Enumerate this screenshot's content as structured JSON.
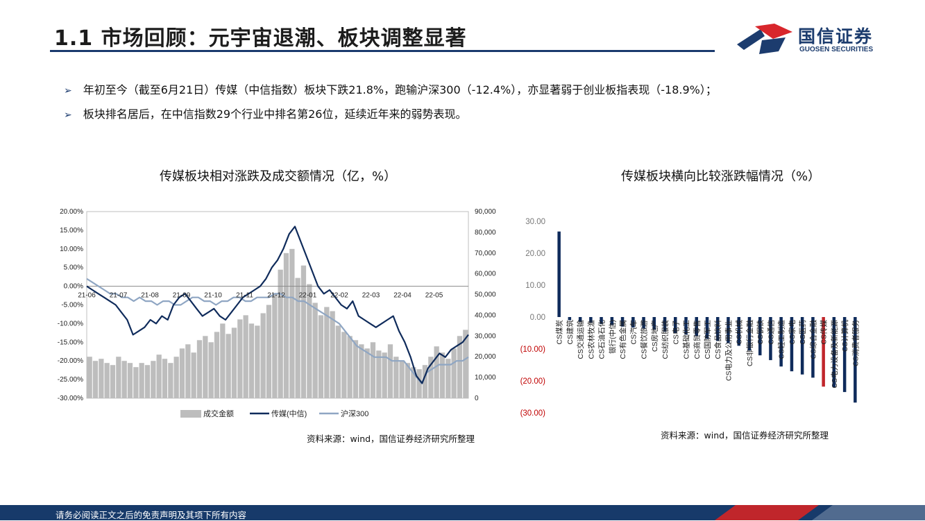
{
  "header": {
    "title": "1.1 市场回顾：元宇宙退潮、板块调整显著",
    "logo_cn": "国信证券",
    "logo_en": "GUOSEN SECURITIES"
  },
  "bullets": [
    "年初至今（截至6月21日）传媒（中信指数）板块下跌21.8%，跑输沪深300（-12.4%），亦显著弱于创业板指表现（-18.9%）；",
    "板块排名居后，在中信指数29个行业中排名第26位，延续近年来的弱势表现。"
  ],
  "left_chart": {
    "title": "传媒板块相对涨跌及成交额情况（亿，%）",
    "source": "资料来源：wind，国信证券经济研究所整理"
  },
  "right_chart": {
    "title": "传媒板块横向比较涨跌幅情况（%）",
    "source": "资料来源：wind，国信证券经济研究所整理"
  },
  "footer": {
    "text": "请务必阅读正文之后的免责声明及其项下所有内容"
  },
  "colors": {
    "navy": "#0f2b5b",
    "gray_line": "#8fa6c3",
    "bar_gray": "#bdbdbd",
    "highlight": "#c0262b",
    "negative_label": "#c00000"
  },
  "chart_data": [
    {
      "type": "line",
      "x_ticks": [
        "21-06",
        "21-07",
        "21-08",
        "21-09",
        "21-10",
        "21-11",
        "21-12",
        "22-01",
        "22-02",
        "22-03",
        "22-04",
        "22-05"
      ],
      "y_left_ticks": [
        "20.00%",
        "15.00%",
        "10.00%",
        "5.00%",
        "0.00%",
        "-5.00%",
        "-10.00%",
        "-15.00%",
        "-20.00%",
        "-25.00%",
        "-30.00%"
      ],
      "y_right_ticks": [
        "90,000",
        "80,000",
        "70,000",
        "60,000",
        "50,000",
        "40,000",
        "30,000",
        "20,000",
        "10,000",
        "0"
      ],
      "ylim_left": [
        -30,
        20
      ],
      "ylim_right": [
        0,
        90000
      ],
      "legend": [
        "成交金额",
        "传媒(中信)",
        "沪深300"
      ],
      "legend_position": "bottom",
      "series": [
        {
          "name": "成交金额",
          "kind": "bar",
          "axis": "right",
          "values": [
            20000,
            18000,
            19000,
            17000,
            16000,
            20000,
            18000,
            17000,
            15000,
            17000,
            16000,
            18000,
            21000,
            19000,
            17000,
            20000,
            24000,
            26000,
            22000,
            28000,
            30000,
            27000,
            32000,
            36000,
            31000,
            34000,
            38000,
            40000,
            36000,
            35000,
            41000,
            45000,
            50000,
            62000,
            70000,
            72000,
            58000,
            64000,
            55000,
            46000,
            40000,
            44000,
            42000,
            35000,
            32000,
            30000,
            28000,
            26000,
            24000,
            27000,
            23000,
            22000,
            26000,
            20000,
            18000,
            17000,
            15000,
            14000,
            16000,
            20000,
            25000,
            22000,
            19000,
            24000,
            30000,
            33000
          ]
        },
        {
          "name": "传媒(中信)",
          "kind": "line",
          "axis": "left",
          "values": [
            0,
            -1,
            -2,
            -3,
            -4,
            -5,
            -7,
            -9,
            -13,
            -12,
            -11,
            -9,
            -10,
            -8,
            -9,
            -5,
            -3,
            -2,
            -4,
            -6,
            -8,
            -7,
            -6,
            -8,
            -9,
            -7,
            -5,
            -3,
            -2,
            -1,
            0,
            2,
            5,
            7,
            10,
            14,
            16,
            12,
            8,
            4,
            0,
            -2,
            -1,
            -3,
            -5,
            -6,
            -4,
            -8,
            -9,
            -10,
            -11,
            -10,
            -9,
            -8,
            -12,
            -15,
            -19,
            -24,
            -26,
            -22,
            -20,
            -18,
            -19,
            -17,
            -16,
            -15,
            -13
          ]
        },
        {
          "name": "沪深300",
          "kind": "line",
          "axis": "left",
          "values": [
            2,
            1,
            0,
            -1,
            -2,
            -2,
            -3,
            -3,
            -4,
            -3,
            -4,
            -4,
            -5,
            -4,
            -4,
            -5,
            -5,
            -4,
            -3,
            -3,
            -4,
            -4,
            -5,
            -4,
            -4,
            -3,
            -3,
            -4,
            -4,
            -3,
            -3,
            -3,
            -2,
            -2,
            -3,
            -3,
            -4,
            -4,
            -5,
            -6,
            -7,
            -8,
            -9,
            -10,
            -12,
            -14,
            -16,
            -17,
            -18,
            -19,
            -19,
            -19,
            -20,
            -20,
            -20,
            -22,
            -24,
            -26,
            -23,
            -22,
            -21,
            -21,
            -21,
            -20,
            -20,
            -19
          ]
        }
      ]
    },
    {
      "type": "bar",
      "categories": [
        "CS煤炭",
        "CS建筑",
        "CS交通运输",
        "CS农林牧渔",
        "CS石油石化",
        "银行(中信)",
        "CS有色金属",
        "CS汽车",
        "CS餐饮旅游",
        "CS房地产",
        "CS纺织服装",
        "CS电子",
        "CS基础化工",
        "CS商贸零售",
        "CS国防军工",
        "CS食品饮料",
        "CS电力及公用事业",
        "CS机械",
        "CS非银行金融",
        "CS钢铁",
        "CS通信",
        "CS轻工制造",
        "CS家电",
        "CS医药",
        "CS综合金融",
        "CS传媒",
        "CS电力设备及新能源",
        "CS计算机",
        "CS消费者服务"
      ],
      "values": [
        26.8,
        -1.0,
        -1.5,
        -1.8,
        -2.2,
        -2.5,
        -3.0,
        -3.3,
        -3.6,
        -4.0,
        -4.5,
        -5.0,
        -5.5,
        -6.0,
        -6.8,
        -7.5,
        -8.2,
        -9.0,
        -10.5,
        -12.0,
        -13.5,
        -15.5,
        -17.0,
        -18.0,
        -19.0,
        -21.8,
        -22.0,
        -23.5,
        -26.8
      ],
      "highlight": "CS传媒",
      "y_ticks": [
        "30.00",
        "20.00",
        "10.00",
        "0.00",
        "(10.00)",
        "(20.00)",
        "(30.00)"
      ],
      "ylim": [
        -30,
        30
      ]
    }
  ]
}
